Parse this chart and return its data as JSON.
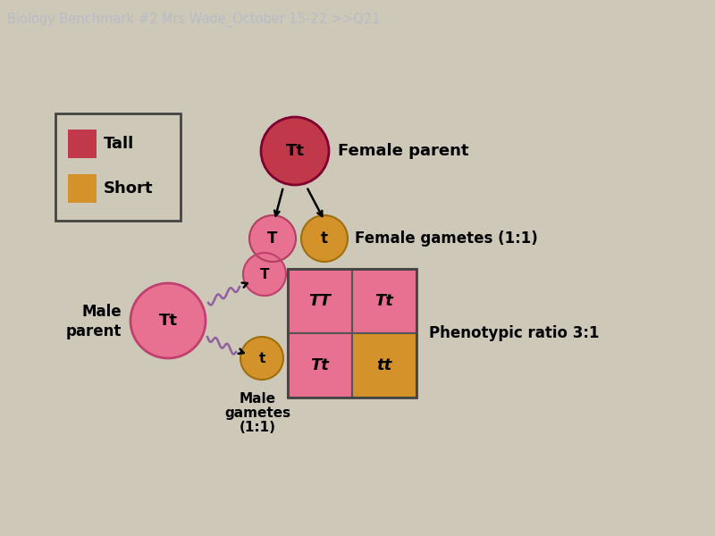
{
  "title": "Biology Benchmark #2 Mrs Wade_October 15-22 >>Q21",
  "title_bg": "#2b3050",
  "title_fg": "#b8bcc8",
  "bg_color": "#cdc8b8",
  "tall_color": "#c0384a",
  "short_color": "#d4922a",
  "gamete_T_color": "#e87090",
  "gamete_t_color": "#d4922a",
  "punnett_pink": "#e87090",
  "punnett_yellow": "#d4922a",
  "female_parent_label": "Female parent",
  "female_gametes_label": "Female gametes (1:1)",
  "male_parent_label_line1": "Male",
  "male_parent_label_line2": "parent",
  "male_gametes_label_line1": "Male",
  "male_gametes_label_line2": "gametes",
  "male_gametes_label_line3": "(1:1)",
  "phenotypic_label": "Phenotypic ratio 3:1",
  "legend_tall": "Tall",
  "legend_short": "Short",
  "punnett_cells": [
    "TT",
    "Tt",
    "Tt",
    "tt"
  ],
  "punnett_colors": [
    "#e87090",
    "#e87090",
    "#e87090",
    "#d4922a"
  ],
  "wavy_color": "#9060a0"
}
